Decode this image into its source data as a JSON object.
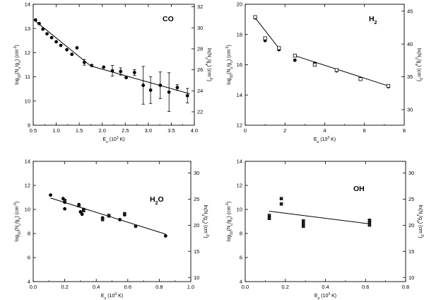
{
  "chart_data": [
    {
      "type": "scatter",
      "molecule": "CO",
      "xlabel": "E_u (10³ K)",
      "ylabel": "log10(N_u/g_u) (cm⁻²)",
      "y2label": "ln(N_u/g_u) (cm⁻²)",
      "xlim": [
        0.5,
        4.0
      ],
      "ylim": [
        9,
        14
      ],
      "y2lim": [
        20.72,
        32.24
      ],
      "xticks": [
        "0.5",
        "1.0",
        "1.5",
        "2.0",
        "2.5",
        "3.0",
        "3.5",
        "4.0"
      ],
      "yticks": [
        "9",
        "10",
        "11",
        "12",
        "13",
        "14"
      ],
      "y2ticks": [
        "22",
        "24",
        "26",
        "28",
        "30",
        "32"
      ],
      "series": [
        {
          "marker": "circle",
          "x": [
            0.55,
            0.63,
            0.71,
            0.8,
            0.9,
            1.0,
            1.1,
            1.23,
            1.34,
            1.45,
            1.61,
            1.77,
            2.03,
            2.22,
            2.4,
            2.52,
            2.7,
            2.89,
            3.05,
            3.26,
            3.45,
            3.63,
            3.85
          ],
          "y": [
            13.35,
            13.2,
            12.97,
            12.78,
            12.62,
            12.45,
            12.3,
            12.12,
            11.93,
            12.2,
            11.6,
            11.47,
            11.4,
            11.25,
            11.22,
            10.97,
            11.18,
            10.65,
            10.45,
            10.65,
            10.37,
            10.56,
            10.22
          ],
          "yerr": [
            0,
            0,
            0,
            0,
            0,
            0,
            0,
            0,
            0,
            0,
            0.12,
            0,
            0,
            0.22,
            0.15,
            0,
            0.12,
            0.78,
            0.55,
            0.55,
            0.8,
            0.12,
            0.3
          ]
        }
      ],
      "fits": [
        {
          "x": [
            0.55,
            1.75
          ],
          "y": [
            13.3,
            11.45
          ]
        },
        {
          "x": [
            1.75,
            3.9
          ],
          "y": [
            11.45,
            10.3
          ]
        }
      ]
    },
    {
      "type": "scatter",
      "molecule": "H₂",
      "xlabel": "E_u (10³ K)",
      "ylabel": "log10(N_u/g_u) (cm⁻²)",
      "y2label": "ln(N_u/g_u) (cm⁻²)",
      "xlim": [
        0,
        8
      ],
      "ylim": [
        12,
        20
      ],
      "y2lim": [
        27.63,
        46.05
      ],
      "xticks": [
        "0",
        "2",
        "4",
        "6",
        "8"
      ],
      "yticks": [
        "12",
        "14",
        "16",
        "18",
        "20"
      ],
      "y2ticks": [
        "30",
        "35",
        "40",
        "45"
      ],
      "series": [
        {
          "marker": "circle",
          "x": [
            0.5,
            1.0,
            1.7,
            2.5,
            3.5,
            4.6,
            5.8,
            7.2
          ],
          "y": [
            19.1,
            17.6,
            17.0,
            16.3,
            16.1,
            15.6,
            15.1,
            14.55
          ]
        },
        {
          "marker": "square-open",
          "x": [
            0.5,
            1.0,
            1.7,
            2.5,
            3.5,
            4.6,
            5.8,
            7.2
          ],
          "y": [
            19.15,
            17.75,
            17.1,
            16.6,
            16.0,
            15.65,
            15.05,
            14.6
          ]
        }
      ],
      "fits": [
        {
          "x": [
            0.5,
            1.75
          ],
          "y": [
            19.1,
            17.0
          ]
        },
        {
          "x": [
            2.5,
            7.2
          ],
          "y": [
            16.6,
            14.6
          ]
        }
      ]
    },
    {
      "type": "scatter",
      "molecule": "H₂O",
      "xlabel": "E_u (10³ K)",
      "ylabel": "log10(N_u/g_u) (cm⁻²)",
      "y2label": "ln(N_u/g_u) (cm⁻²)",
      "xlim": [
        0.0,
        1.0
      ],
      "ylim": [
        4,
        14
      ],
      "y2lim": [
        9.21,
        32.24
      ],
      "xticks": [
        "0.0",
        "0.2",
        "0.4",
        "0.6",
        "0.8",
        "1.0"
      ],
      "yticks": [
        "4",
        "6",
        "8",
        "10",
        "12",
        "14"
      ],
      "y2ticks": [
        "10",
        "15",
        "20",
        "25",
        "30"
      ],
      "series": [
        {
          "marker": "circle",
          "x": [
            0.11,
            0.19,
            0.2,
            0.2,
            0.29,
            0.3,
            0.31,
            0.32,
            0.44,
            0.48,
            0.55,
            0.58,
            0.65,
            0.84
          ],
          "y": [
            11.2,
            10.9,
            10.6,
            10.05,
            10.4,
            9.8,
            9.6,
            10.0,
            9.3,
            9.45,
            9.15,
            9.55,
            8.6,
            7.8
          ]
        },
        {
          "marker": "square",
          "x": [
            0.2,
            0.29,
            0.32,
            0.44,
            0.48,
            0.58
          ],
          "y": [
            10.75,
            10.3,
            9.9,
            9.15,
            9.5,
            9.65
          ]
        }
      ],
      "fits": [
        {
          "x": [
            0.11,
            0.84
          ],
          "y": [
            10.95,
            7.95
          ]
        }
      ]
    },
    {
      "type": "scatter",
      "molecule": "OH",
      "xlabel": "E_u (10³ K)",
      "ylabel": "log10(N_u/g_u) (cm⁻²)",
      "y2label": "ln(N_u/g_u) (cm⁻²)",
      "xlim": [
        0.0,
        0.8
      ],
      "ylim": [
        4,
        14
      ],
      "y2lim": [
        9.21,
        32.24
      ],
      "xticks": [
        "0.0",
        "0.2",
        "0.4",
        "0.6",
        "0.8"
      ],
      "yticks": [
        "4",
        "6",
        "8",
        "10",
        "12",
        "14"
      ],
      "y2ticks": [
        "10",
        "15",
        "20",
        "25",
        "30"
      ],
      "series": [
        {
          "marker": "square",
          "x": [
            0.12,
            0.12,
            0.18,
            0.18,
            0.29,
            0.29,
            0.29,
            0.62,
            0.62,
            0.62
          ],
          "y": [
            9.25,
            9.5,
            10.9,
            10.45,
            8.6,
            8.85,
            9.05,
            8.7,
            8.95,
            9.1
          ]
        }
      ],
      "fits": [
        {
          "x": [
            0.12,
            0.62
          ],
          "y": [
            9.85,
            8.8
          ]
        }
      ]
    }
  ]
}
